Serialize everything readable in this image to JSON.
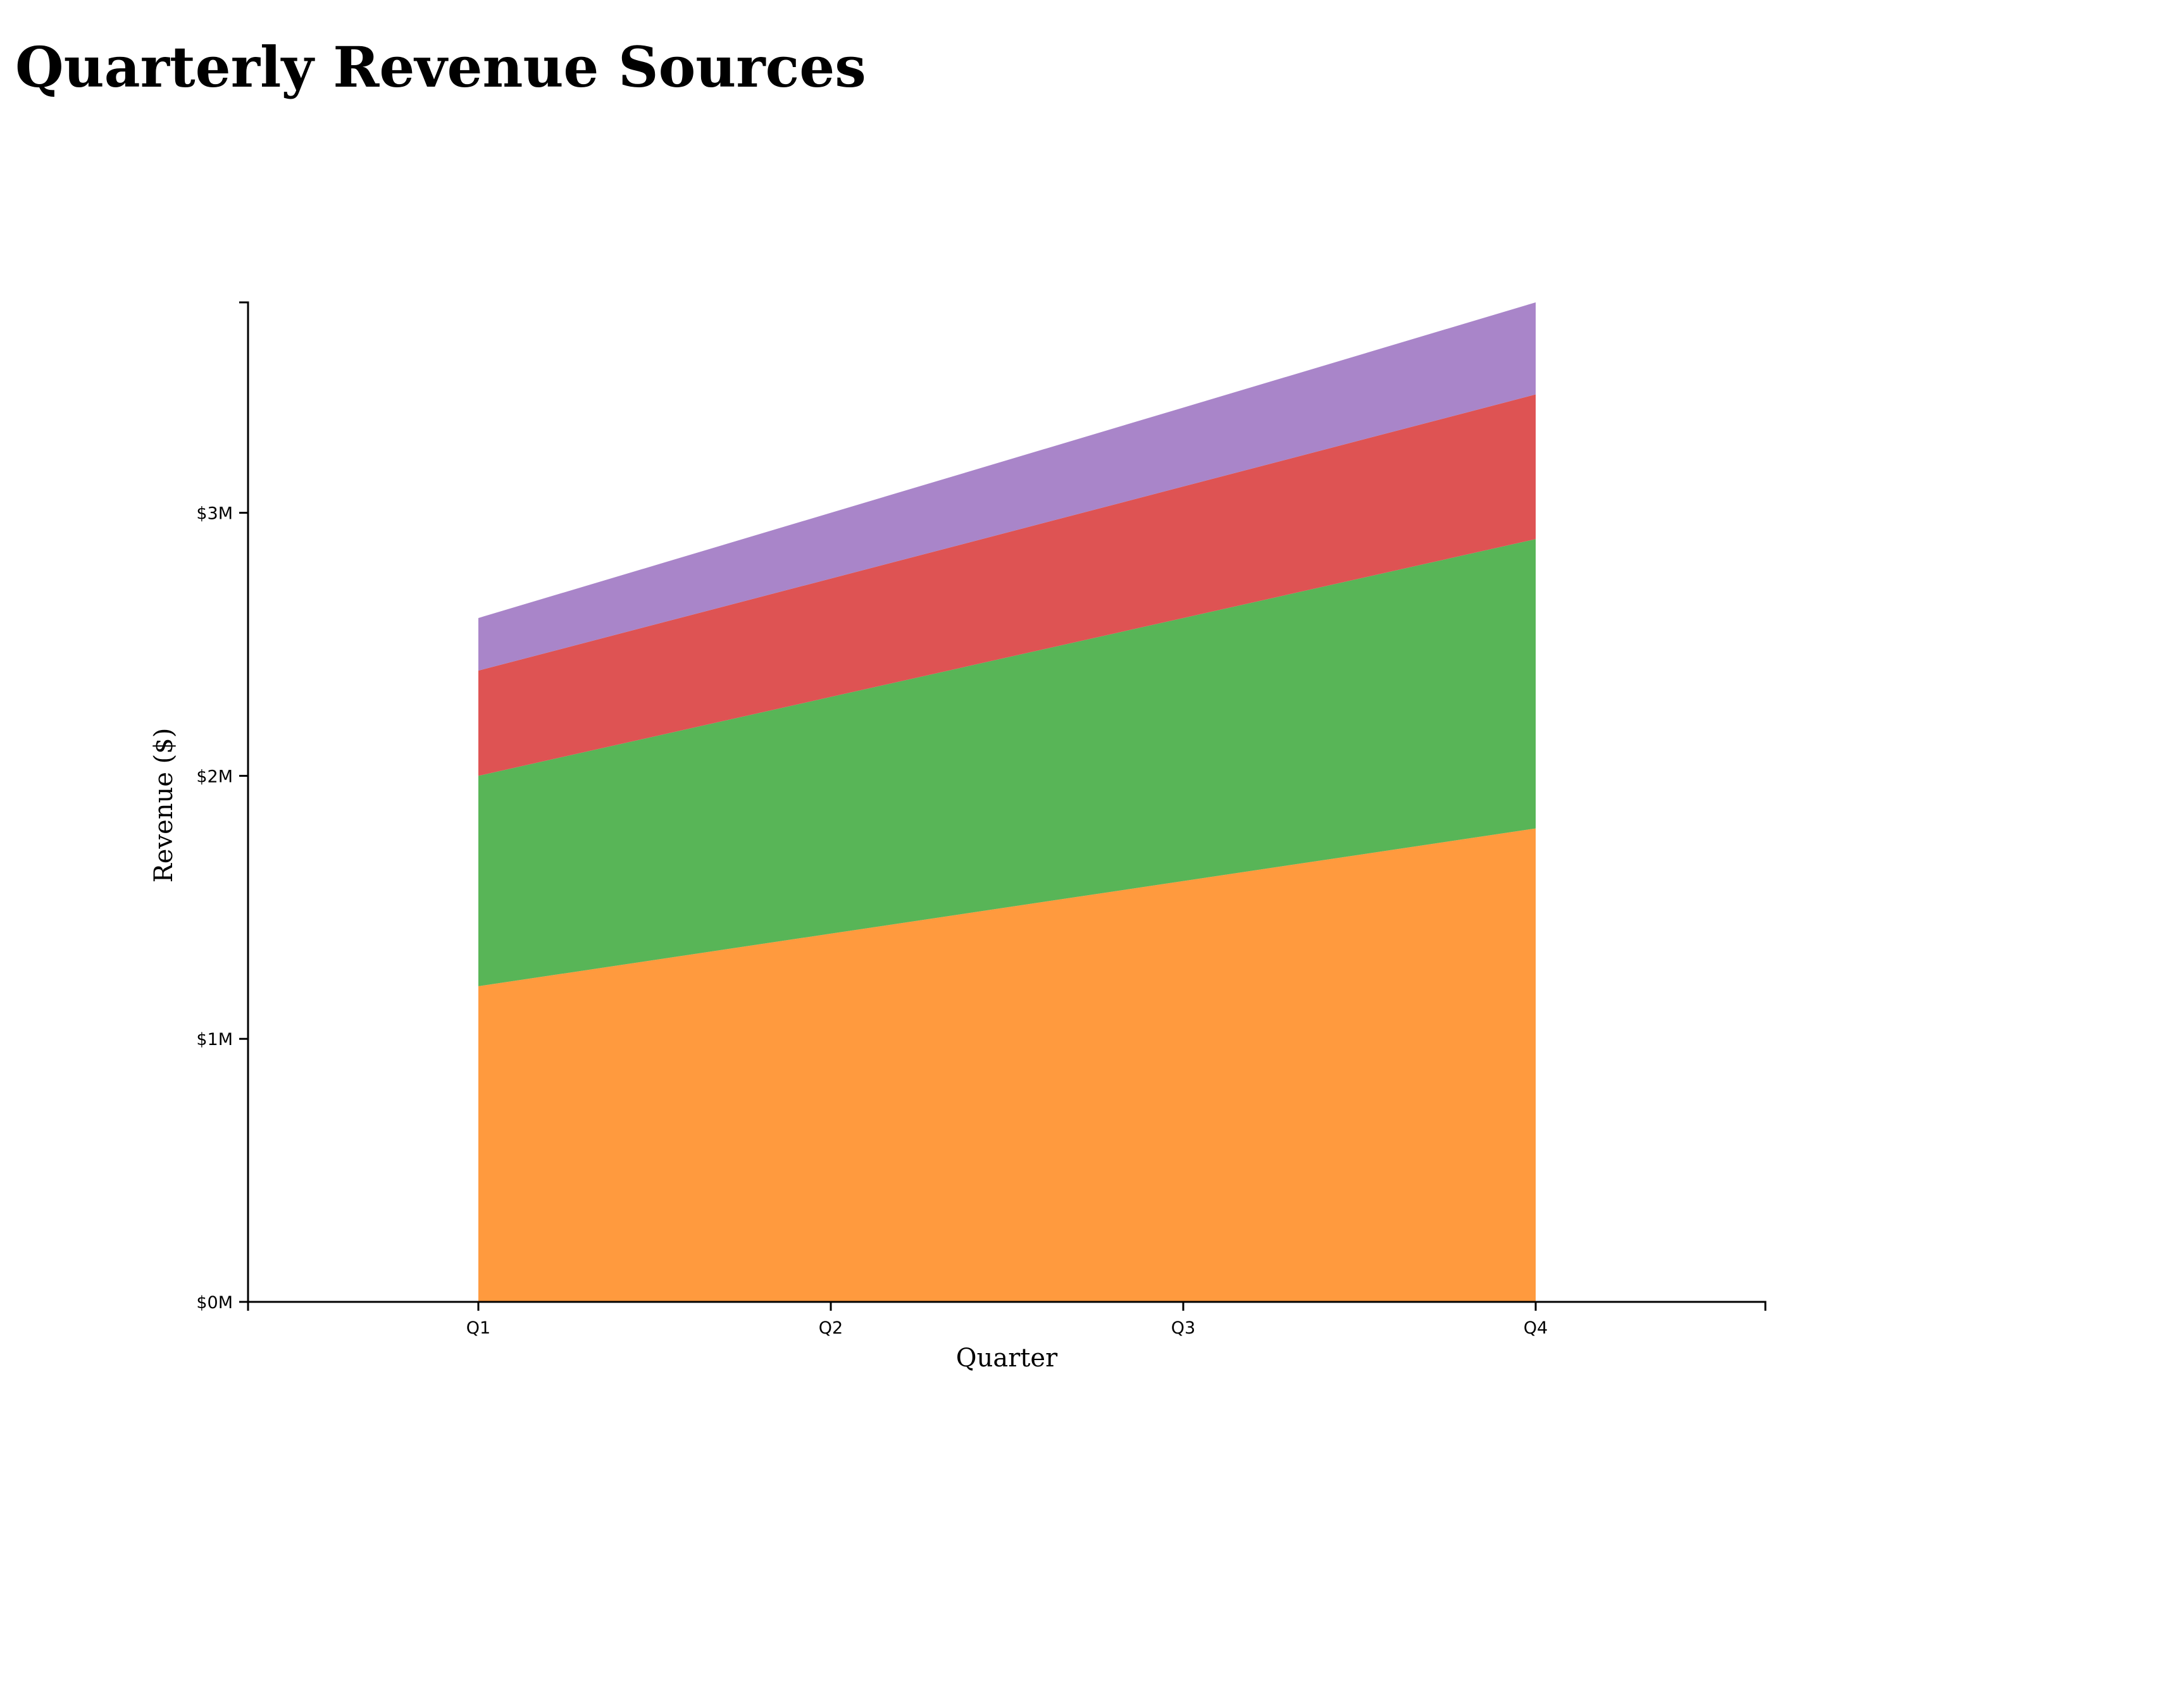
{
  "title": "Quarterly Revenue Sources",
  "chart_data": {
    "type": "area",
    "stacked": true,
    "title": "Quarterly Revenue Sources",
    "xlabel": "Quarter",
    "ylabel": "Revenue ($)",
    "categories": [
      "Q1",
      "Q2",
      "Q3",
      "Q4"
    ],
    "ylim": [
      0,
      3800000
    ],
    "yticks": [
      {
        "value": 0,
        "label": "$0M"
      },
      {
        "value": 1000000,
        "label": "$1M"
      },
      {
        "value": 2000000,
        "label": "$2M"
      },
      {
        "value": 3000000,
        "label": "$3M"
      }
    ],
    "legend": "none",
    "grid": false,
    "series": [
      {
        "color": "#ff9a3e",
        "values": [
          1200000,
          1400000,
          1600000,
          1800000
        ]
      },
      {
        "color": "#58b557",
        "values": [
          800000,
          900000,
          1000000,
          1100000
        ]
      },
      {
        "color": "#de5353",
        "values": [
          400000,
          450000,
          500000,
          550000
        ]
      },
      {
        "color": "#a985c9",
        "values": [
          200000,
          250000,
          300000,
          350000
        ]
      }
    ]
  }
}
